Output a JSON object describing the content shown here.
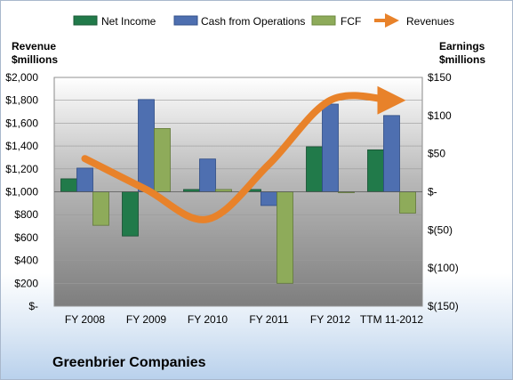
{
  "footer": {
    "company": "Greenbrier Companies"
  },
  "legend": {
    "net_income": "Net Income",
    "cfo": "Cash from Operations",
    "fcf": "FCF",
    "revenues": "Revenues"
  },
  "axes": {
    "left_title_1": "Revenue",
    "left_title_2": "$millions",
    "right_title_1": "Earnings",
    "right_title_2": "$millions"
  },
  "colors": {
    "net_income": "#217a4a",
    "cfo": "#4e6fb0",
    "fcf": "#8eab5a",
    "revenues": "#e8822a"
  },
  "chart_data": {
    "type": "bar",
    "categories": [
      "FY 2008",
      "FY 2009",
      "FY 2010",
      "FY 2011",
      "FY 2012",
      "TTM 11-2012"
    ],
    "left_axis": {
      "title": "Revenue $millions",
      "ylim": [
        0,
        2000
      ],
      "tick_values": [
        0,
        200,
        400,
        600,
        800,
        1000,
        1200,
        1400,
        1600,
        1800,
        2000
      ],
      "tick_labels": [
        "$-",
        "$200",
        "$400",
        "$600",
        "$800",
        "$1,000",
        "$1,200",
        "$1,400",
        "$1,600",
        "$1,800",
        "$2,000"
      ]
    },
    "right_axis": {
      "title": "Earnings $millions",
      "ylim": [
        -150,
        150
      ],
      "tick_values": [
        -150,
        -100,
        -50,
        0,
        50,
        100,
        150
      ],
      "tick_labels": [
        "$(150)",
        "$(100)",
        "$(50)",
        "$-",
        "$50",
        "$100",
        "$150"
      ]
    },
    "series": [
      {
        "name": "Net Income",
        "axis": "right",
        "kind": "bar",
        "values": [
          17,
          -58,
          3,
          3,
          59,
          55
        ]
      },
      {
        "name": "Cash from Operations",
        "axis": "right",
        "kind": "bar",
        "values": [
          31,
          121,
          43,
          -18,
          115,
          100
        ]
      },
      {
        "name": "FCF",
        "axis": "right",
        "kind": "bar",
        "values": [
          -44,
          83,
          3,
          -120,
          -1,
          -28
        ]
      },
      {
        "name": "Revenues",
        "axis": "left",
        "kind": "line",
        "values": [
          1290,
          1020,
          760,
          1240,
          1800,
          1800
        ]
      }
    ],
    "grid": true,
    "legend_position": "top"
  }
}
